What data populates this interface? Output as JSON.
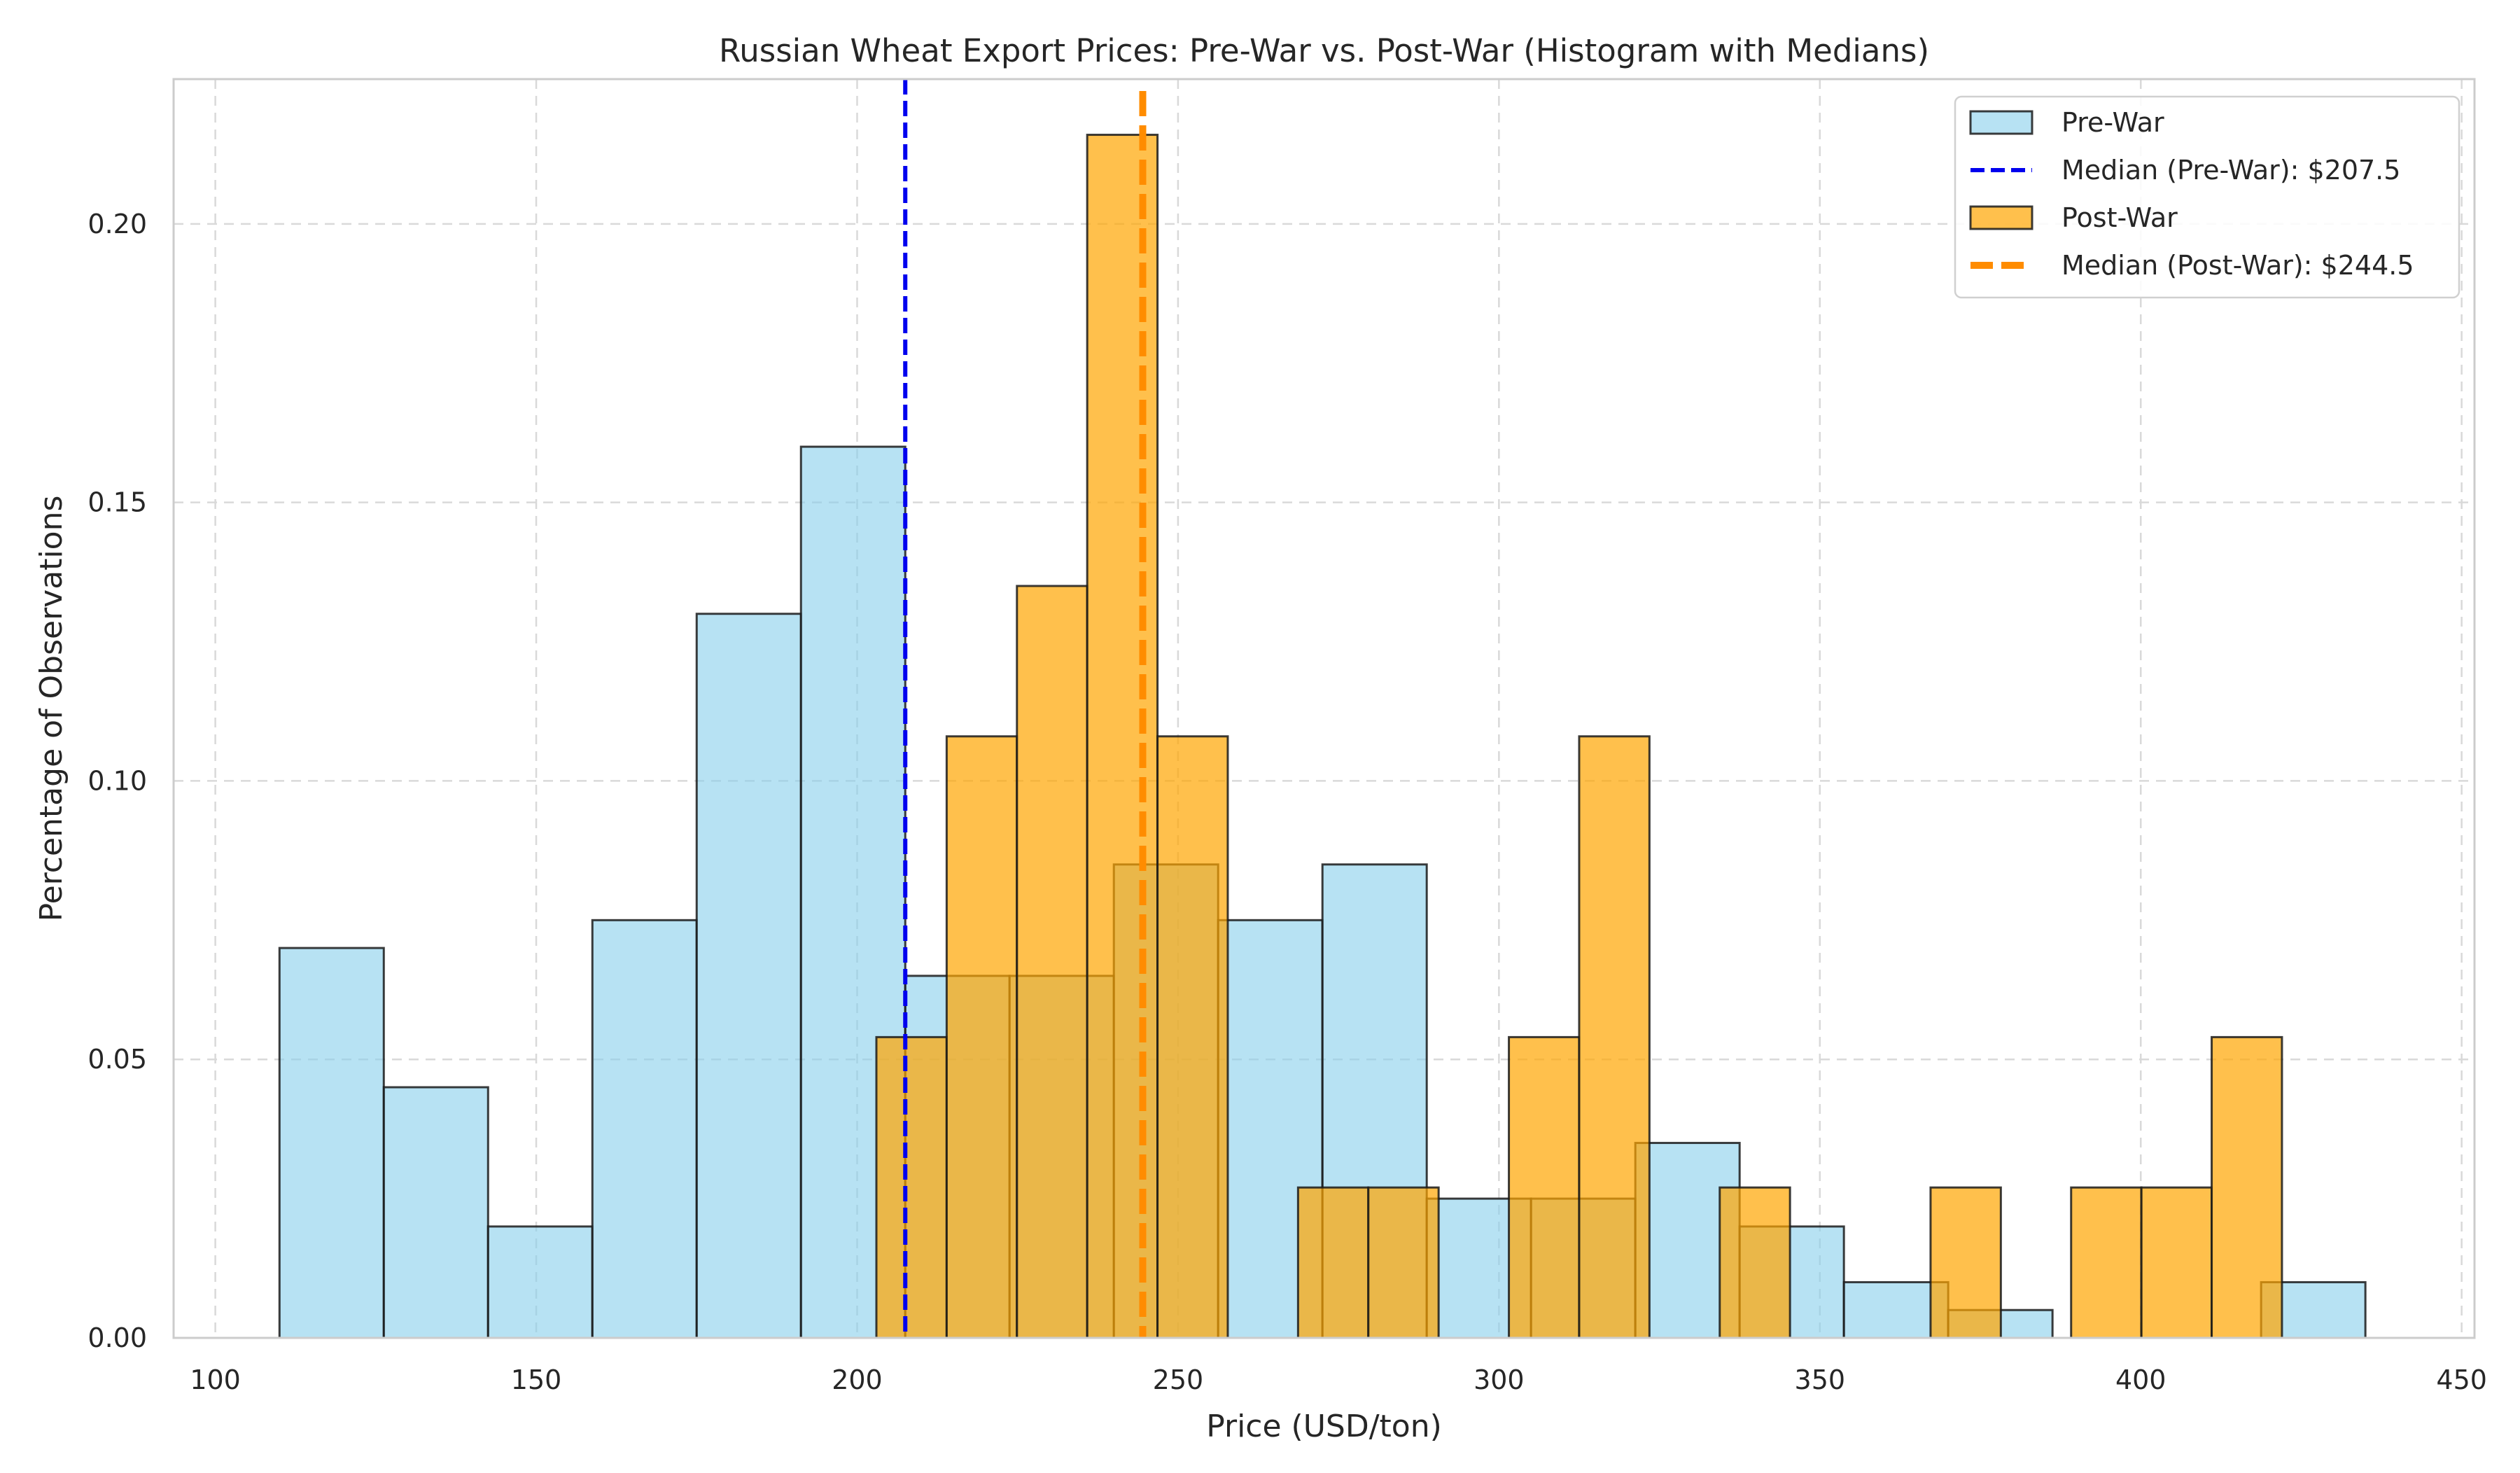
{
  "chart_data": {
    "type": "bar",
    "title": "Russian Wheat Export Prices: Pre-War vs. Post-War (Histogram with Medians)",
    "xlabel": "Price (USD/ton)",
    "ylabel": "Percentage of Observations",
    "xlim": [
      93.5,
      452
    ],
    "ylim": [
      0,
      0.226
    ],
    "xticks": [
      "100",
      "150",
      "200",
      "250",
      "300",
      "350",
      "400",
      "450"
    ],
    "xtick_values": [
      100,
      150,
      200,
      250,
      300,
      350,
      400,
      450
    ],
    "yticks": [
      "0.00",
      "0.05",
      "0.10",
      "0.15",
      "0.20"
    ],
    "ytick_values": [
      0,
      0.05,
      0.1,
      0.15,
      0.2
    ],
    "grid": true,
    "legend_position": "top-right",
    "legend": [
      "Pre-War",
      "Median (Pre-War): $207.5",
      "Post-War",
      "Median (Post-War): $244.5"
    ],
    "colors": {
      "pre_war_fill": "#87ceeb",
      "post_war_fill": "#ffa500",
      "edge": "#1a1a1a",
      "median_pre": "#0000ee",
      "median_post": "#ff8c00",
      "grid": "#d9d9d9"
    },
    "series": [
      {
        "name": "Pre-War",
        "bin_edges": [
          110,
          126.25,
          142.5,
          158.75,
          175,
          191.25,
          207.5,
          223.75,
          240,
          256.25,
          272.5,
          288.75,
          305,
          321.25,
          337.5,
          353.75,
          370,
          386.25,
          402.5,
          418.75,
          435
        ],
        "values": [
          0.07,
          0.045,
          0.02,
          0.075,
          0.13,
          0.16,
          0.065,
          0.065,
          0.085,
          0.075,
          0.085,
          0.025,
          0.025,
          0.035,
          0.02,
          0.01,
          0.005,
          0.0,
          0.0,
          0.01
        ]
      },
      {
        "name": "Post-War",
        "bin_edges": [
          203,
          213.95,
          224.9,
          235.85,
          246.8,
          257.75,
          268.7,
          279.65,
          290.6,
          301.55,
          312.5,
          323.45,
          334.4,
          345.35,
          356.3,
          367.25,
          378.2,
          389.15,
          400.1,
          411.05,
          422
        ],
        "values": [
          0.054,
          0.108,
          0.135,
          0.216,
          0.108,
          0.0,
          0.027,
          0.027,
          0.0,
          0.054,
          0.108,
          0.0,
          0.027,
          0.0,
          0.0,
          0.027,
          0.0,
          0.027,
          0.027,
          0.054
        ]
      }
    ],
    "medians": [
      {
        "name": "Median (Pre-War): $207.5",
        "value": 207.5
      },
      {
        "name": "Median (Post-War): $244.5",
        "value": 244.5
      }
    ]
  }
}
